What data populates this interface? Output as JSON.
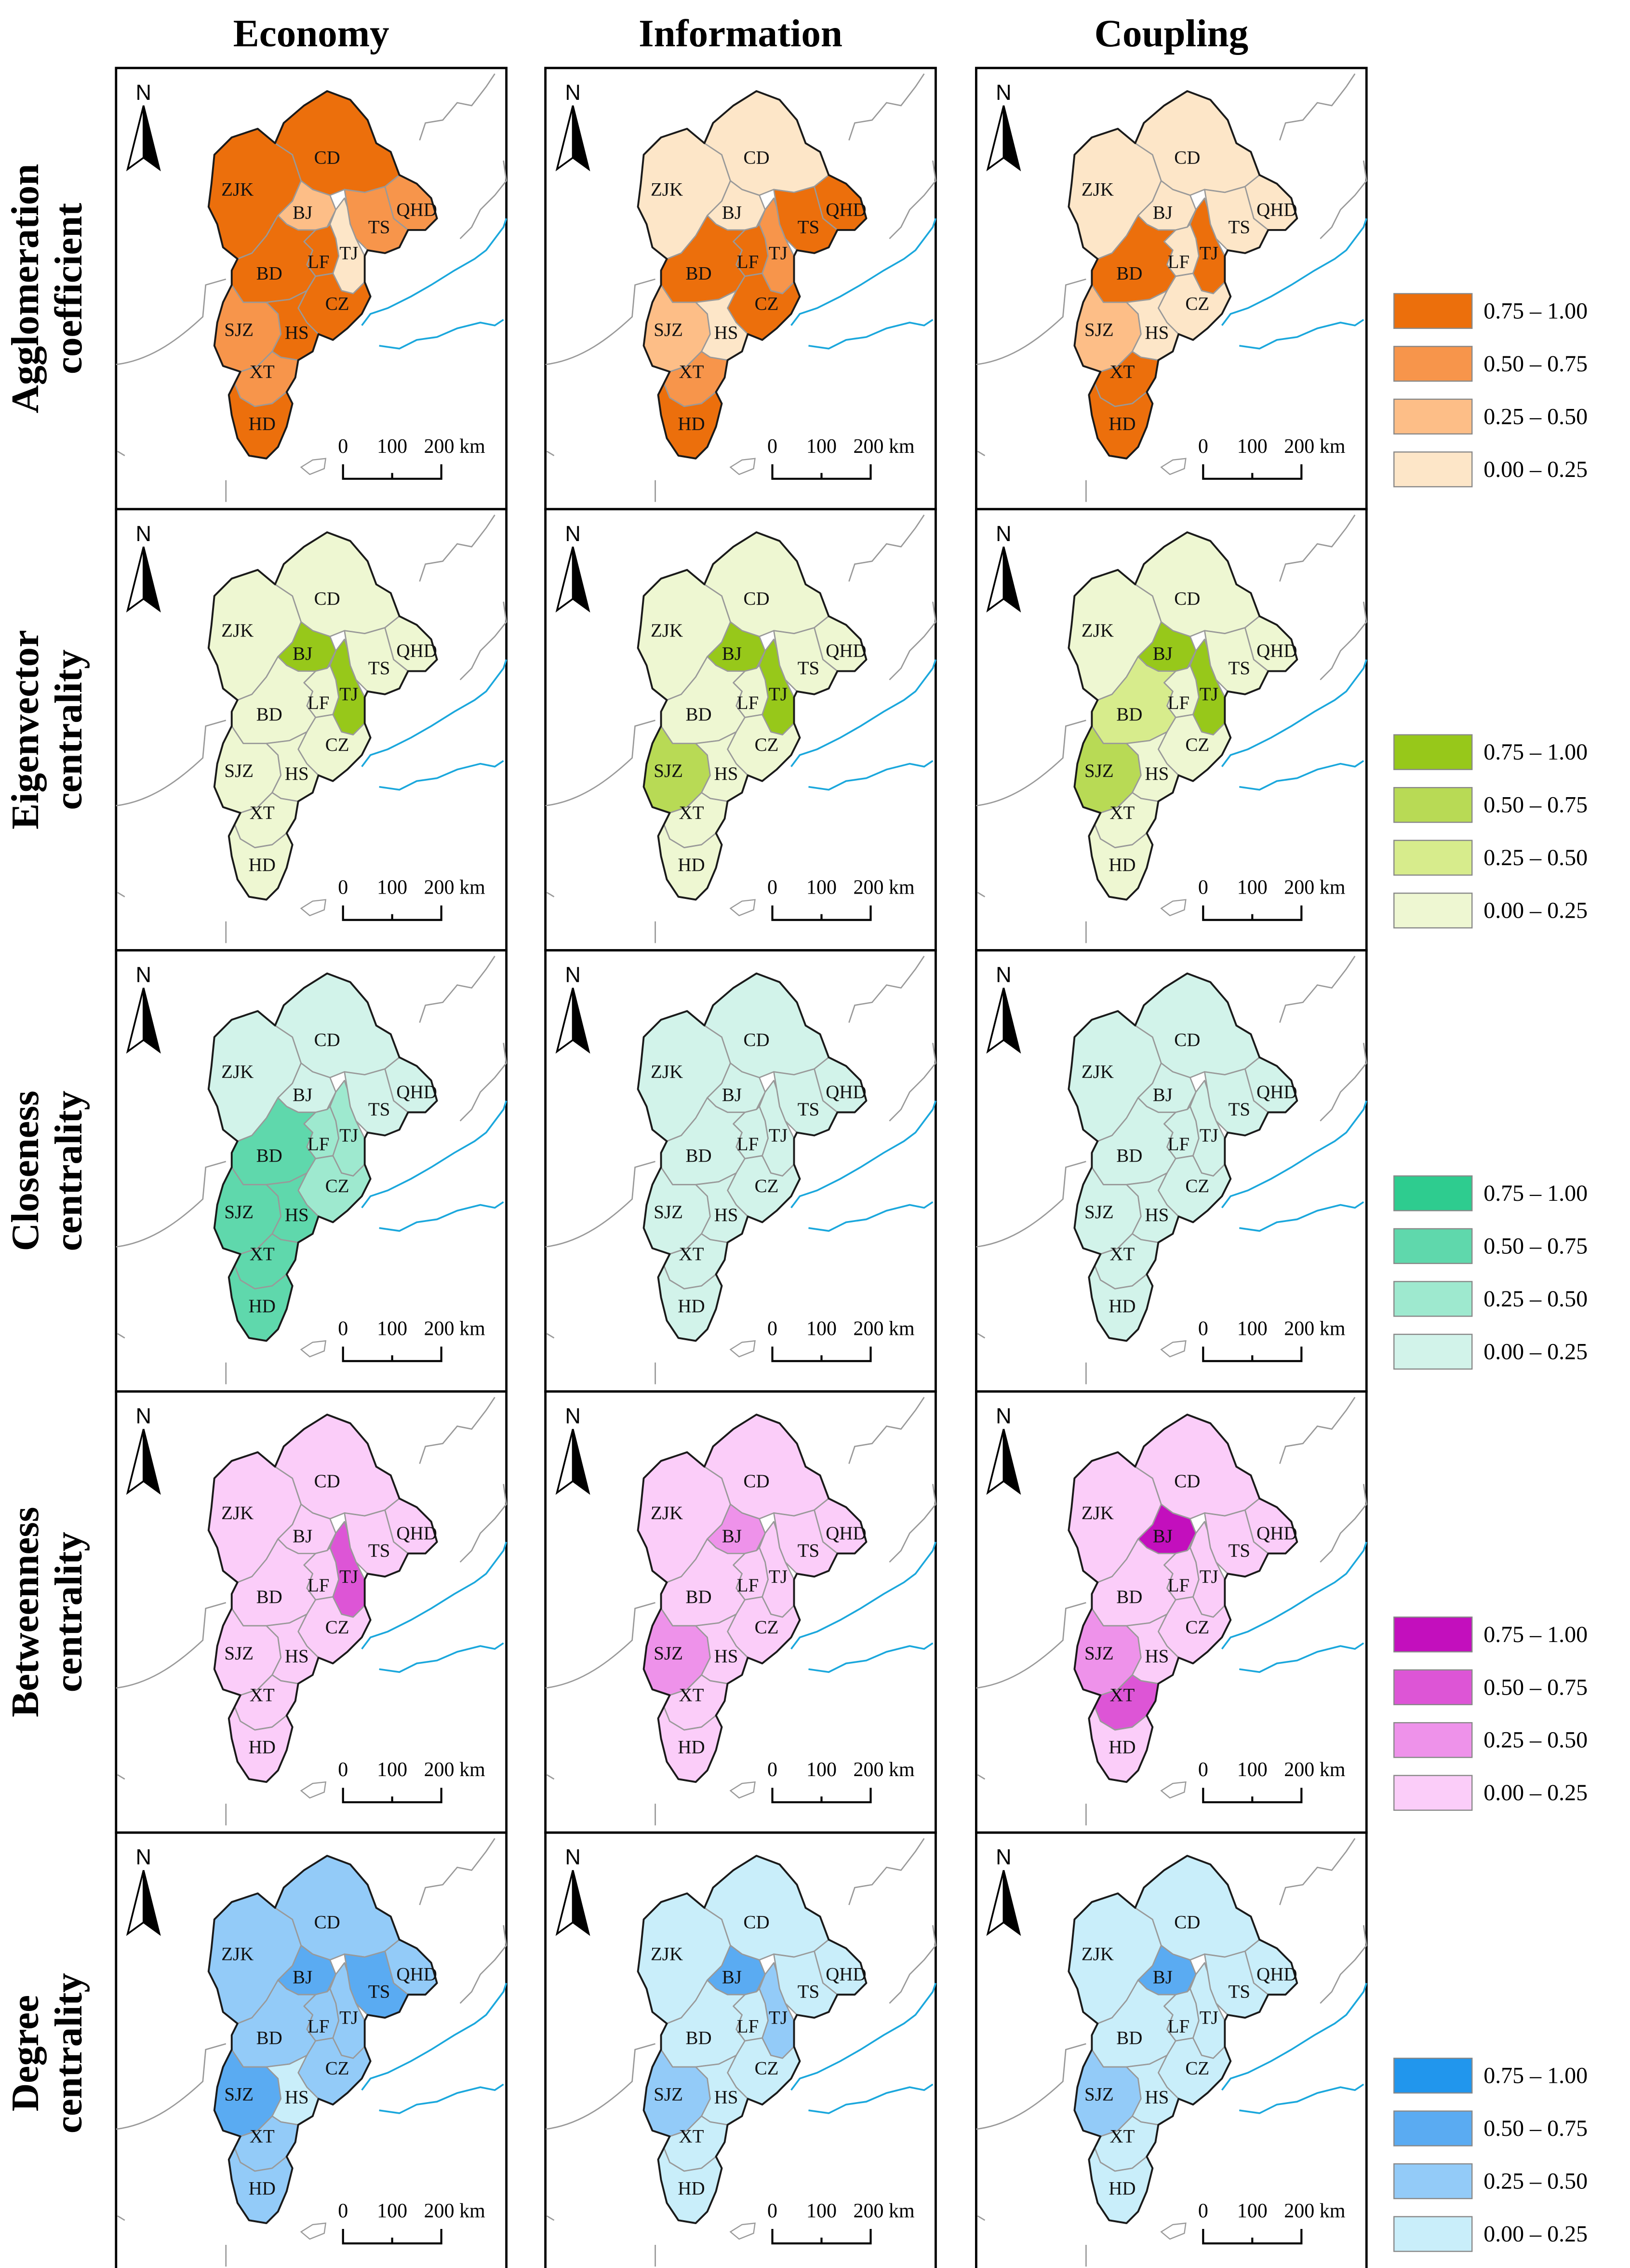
{
  "columns": [
    "Economy",
    "Information",
    "Coupling"
  ],
  "rows": [
    {
      "title_line1": "Agglomeration",
      "title_line2": "coefficient",
      "palette": "orange",
      "maps": [
        {
          "ZJK": 3,
          "CD": 3,
          "BJ": 1,
          "QHD": 2,
          "TS": 2,
          "TJ": 0,
          "LF": 3,
          "BD": 3,
          "CZ": 3,
          "SJZ": 2,
          "HS": 3,
          "XT": 2,
          "HD": 3
        },
        {
          "ZJK": 0,
          "CD": 0,
          "BJ": 0,
          "QHD": 3,
          "TS": 3,
          "TJ": 2,
          "LF": 3,
          "BD": 3,
          "CZ": 3,
          "SJZ": 1,
          "HS": 0,
          "XT": 2,
          "HD": 3
        },
        {
          "ZJK": 0,
          "CD": 0,
          "BJ": 0,
          "QHD": 0,
          "TS": 0,
          "TJ": 3,
          "LF": 0,
          "BD": 3,
          "CZ": 0,
          "SJZ": 1,
          "HS": 0,
          "XT": 3,
          "HD": 3
        }
      ]
    },
    {
      "title_line1": "Eigenvector",
      "title_line2": "centrality",
      "palette": "green",
      "maps": [
        {
          "ZJK": 0,
          "CD": 0,
          "BJ": 3,
          "QHD": 0,
          "TS": 0,
          "TJ": 3,
          "LF": 0,
          "BD": 0,
          "CZ": 0,
          "SJZ": 0,
          "HS": 0,
          "XT": 0,
          "HD": 0
        },
        {
          "ZJK": 0,
          "CD": 0,
          "BJ": 3,
          "QHD": 0,
          "TS": 0,
          "TJ": 3,
          "LF": 0,
          "BD": 0,
          "CZ": 0,
          "SJZ": 2,
          "HS": 0,
          "XT": 0,
          "HD": 0
        },
        {
          "ZJK": 0,
          "CD": 0,
          "BJ": 3,
          "QHD": 0,
          "TS": 0,
          "TJ": 3,
          "LF": 0,
          "BD": 1,
          "CZ": 0,
          "SJZ": 2,
          "HS": 0,
          "XT": 0,
          "HD": 0
        }
      ]
    },
    {
      "title_line1": "Closeness",
      "title_line2": "centrality",
      "palette": "teal",
      "maps": [
        {
          "ZJK": 0,
          "CD": 0,
          "BJ": 0,
          "QHD": 0,
          "TS": 0,
          "TJ": 1,
          "LF": 1,
          "BD": 2,
          "CZ": 1,
          "SJZ": 2,
          "HS": 2,
          "XT": 2,
          "HD": 2
        },
        {
          "ZJK": 0,
          "CD": 0,
          "BJ": 0,
          "QHD": 0,
          "TS": 0,
          "TJ": 0,
          "LF": 0,
          "BD": 0,
          "CZ": 0,
          "SJZ": 0,
          "HS": 0,
          "XT": 0,
          "HD": 0
        },
        {
          "ZJK": 0,
          "CD": 0,
          "BJ": 0,
          "QHD": 0,
          "TS": 0,
          "TJ": 0,
          "LF": 0,
          "BD": 0,
          "CZ": 0,
          "SJZ": 0,
          "HS": 0,
          "XT": 0,
          "HD": 0
        }
      ]
    },
    {
      "title_line1": "Betweenness",
      "title_line2": "centrality",
      "palette": "magenta",
      "maps": [
        {
          "ZJK": 0,
          "CD": 0,
          "BJ": 0,
          "QHD": 0,
          "TS": 0,
          "TJ": 2,
          "LF": 0,
          "BD": 0,
          "CZ": 0,
          "SJZ": 0,
          "HS": 0,
          "XT": 0,
          "HD": 0
        },
        {
          "ZJK": 0,
          "CD": 0,
          "BJ": 1,
          "QHD": 0,
          "TS": 0,
          "TJ": 0,
          "LF": 0,
          "BD": 0,
          "CZ": 0,
          "SJZ": 1,
          "HS": 0,
          "XT": 0,
          "HD": 0
        },
        {
          "ZJK": 0,
          "CD": 0,
          "BJ": 3,
          "QHD": 0,
          "TS": 0,
          "TJ": 0,
          "LF": 0,
          "BD": 0,
          "CZ": 0,
          "SJZ": 1,
          "HS": 0,
          "XT": 2,
          "HD": 0
        }
      ]
    },
    {
      "title_line1": "Degree",
      "title_line2": "centrality",
      "palette": "blue",
      "maps": [
        {
          "ZJK": 1,
          "CD": 1,
          "BJ": 2,
          "QHD": 1,
          "TS": 2,
          "TJ": 1,
          "LF": 1,
          "BD": 1,
          "CZ": 1,
          "SJZ": 2,
          "HS": 0,
          "XT": 1,
          "HD": 1
        },
        {
          "ZJK": 0,
          "CD": 0,
          "BJ": 2,
          "QHD": 0,
          "TS": 0,
          "TJ": 1,
          "LF": 0,
          "BD": 0,
          "CZ": 0,
          "SJZ": 1,
          "HS": 0,
          "XT": 0,
          "HD": 0
        },
        {
          "ZJK": 0,
          "CD": 0,
          "BJ": 2,
          "QHD": 0,
          "TS": 0,
          "TJ": 0,
          "LF": 0,
          "BD": 0,
          "CZ": 0,
          "SJZ": 1,
          "HS": 0,
          "XT": 0,
          "HD": 0
        }
      ]
    }
  ],
  "palettes": {
    "orange": [
      "#fde6c8",
      "#fdbe87",
      "#f7954b",
      "#ec6f0c"
    ],
    "green": [
      "#eef7d2",
      "#d7ec8c",
      "#b8da55",
      "#97c81a"
    ],
    "teal": [
      "#d2f3ea",
      "#9ee9cf",
      "#5fd8ac",
      "#2ecc8f"
    ],
    "magenta": [
      "#fbcdf9",
      "#ee92ea",
      "#dd55d6",
      "#c30fbd"
    ],
    "blue": [
      "#c9eefa",
      "#93cbf8",
      "#5aabf2",
      "#2196ed"
    ]
  },
  "legend": [
    "0.75 – 1.00",
    "0.50 – 0.75",
    "0.25 – 0.50",
    "0.00 – 0.25"
  ],
  "cities": [
    "ZJK",
    "CD",
    "BJ",
    "QHD",
    "TS",
    "TJ",
    "LF",
    "BD",
    "CZ",
    "SJZ",
    "HS",
    "XT",
    "HD"
  ],
  "north_label": "N",
  "scale_labels": [
    "0",
    "100",
    "200 km"
  ],
  "colors": {
    "boundary": "#999999",
    "coast": "#1aa7dc",
    "frame": "#000000"
  }
}
